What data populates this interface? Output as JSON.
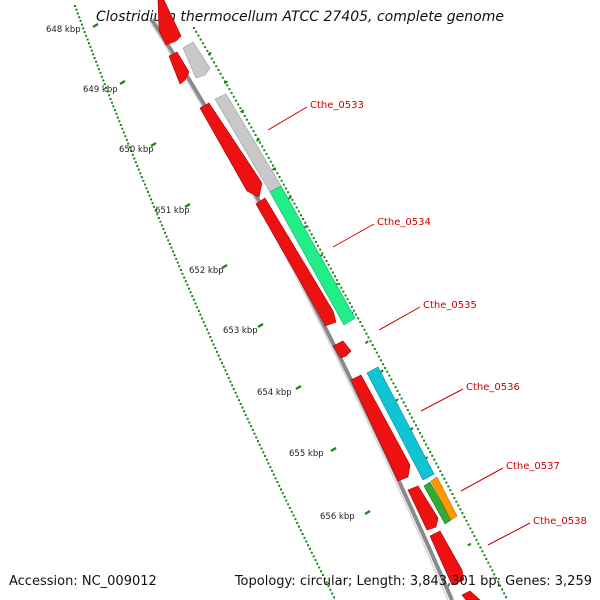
{
  "title": "Clostridium thermocellum ATCC 27405, complete genome",
  "footer": {
    "accession_label": "Accession:",
    "accession": "NC_009012",
    "topology_label": "Topology:",
    "topology": "circular",
    "length_label": "Length:",
    "length": "3,843,301 bp",
    "genes_label": "Genes:",
    "genes": "3,259"
  },
  "ruler": {
    "unit": "kbp",
    "ticks": [
      "648 kbp",
      "649 kbp",
      "650 kbp",
      "651 kbp",
      "652 kbp",
      "653 kbp",
      "654 kbp",
      "655 kbp",
      "656 kbp"
    ]
  },
  "gene_labels": [
    "Cthe_0533",
    "Cthe_0534",
    "Cthe_0535",
    "Cthe_0536",
    "Cthe_0537",
    "Cthe_0538"
  ],
  "colors": {
    "cds_red": "#ee1111",
    "cds_gray": "#c0c0c0",
    "cds_green": "#22ee88",
    "cds_cyan": "#11c4d4",
    "cds_darkgreen": "#33aa33",
    "cds_orange": "#ff9900",
    "label_red": "#cc0000",
    "backbone": "#888888",
    "tick_green": "#118811"
  }
}
